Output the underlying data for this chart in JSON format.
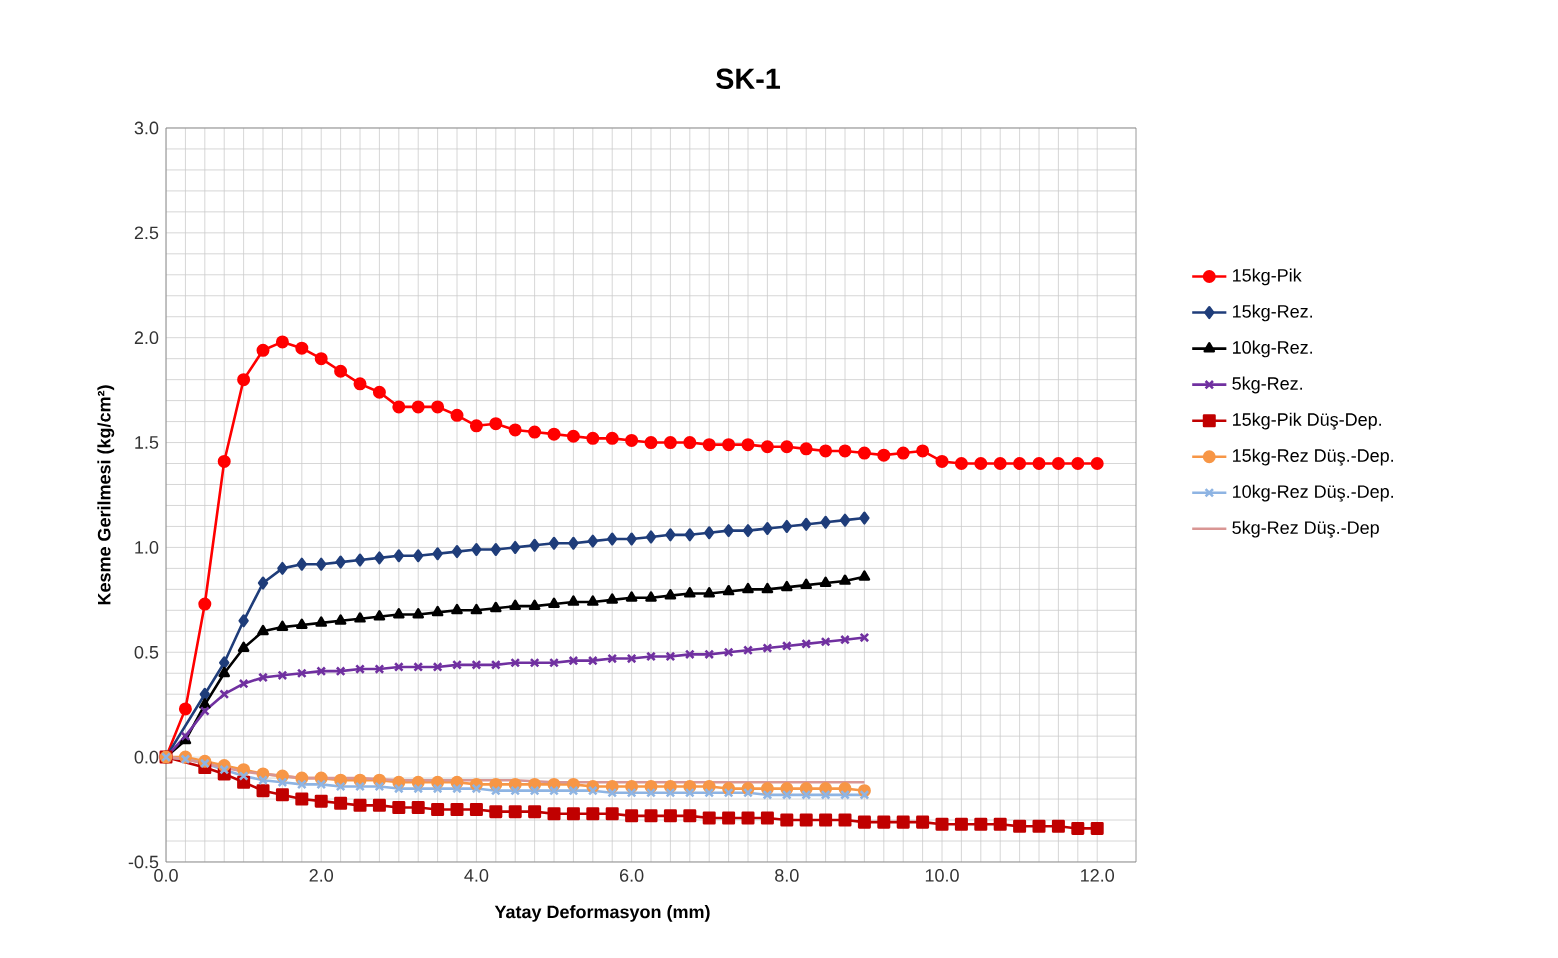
{
  "chart_data": {
    "type": "line",
    "title": "SK-1",
    "xlabel": "Yatay Deformasyon (mm)",
    "ylabel": "Kesme Gerilmesi (kg/cm²)",
    "xlim": [
      0,
      12.5
    ],
    "ylim": [
      -0.5,
      3.0
    ],
    "xticks": [
      {
        "value": 0,
        "label": "0.0"
      },
      {
        "value": 2,
        "label": "2.0"
      },
      {
        "value": 4,
        "label": "4.0"
      },
      {
        "value": 6,
        "label": "6.0"
      },
      {
        "value": 8,
        "label": "8.0"
      },
      {
        "value": 10,
        "label": "10.0"
      },
      {
        "value": 12,
        "label": "12.0"
      }
    ],
    "yticks": [
      {
        "value": -0.5,
        "label": "-0.5"
      },
      {
        "value": 0,
        "label": "0.0"
      },
      {
        "value": 0.5,
        "label": "0.5"
      },
      {
        "value": 1.0,
        "label": "1.0"
      },
      {
        "value": 1.5,
        "label": "1.5"
      },
      {
        "value": 2.0,
        "label": "2.0"
      },
      {
        "value": 2.5,
        "label": "2.5"
      },
      {
        "value": 3.0,
        "label": "3.0"
      }
    ],
    "grid": true,
    "legend": "right",
    "series": [
      {
        "name": "15kg-Pik",
        "color": "#ff0000",
        "marker": "circle",
        "x": [
          0,
          0.25,
          0.5,
          0.75,
          1,
          1.25,
          1.5,
          1.75,
          2,
          2.25,
          2.5,
          2.75,
          3,
          3.25,
          3.5,
          3.75,
          4,
          4.25,
          4.5,
          4.75,
          5,
          5.25,
          5.5,
          5.75,
          6,
          6.25,
          6.5,
          6.75,
          7,
          7.25,
          7.5,
          7.75,
          8,
          8.25,
          8.5,
          8.75,
          9,
          9.25,
          9.5,
          9.75,
          10,
          10.25,
          10.5,
          10.75,
          11,
          11.25,
          11.5,
          11.75,
          12
        ],
        "values": [
          0,
          0.23,
          0.73,
          1.41,
          1.8,
          1.94,
          1.98,
          1.95,
          1.9,
          1.84,
          1.78,
          1.74,
          1.67,
          1.67,
          1.67,
          1.63,
          1.58,
          1.59,
          1.56,
          1.55,
          1.54,
          1.53,
          1.52,
          1.52,
          1.51,
          1.5,
          1.5,
          1.5,
          1.49,
          1.49,
          1.49,
          1.48,
          1.48,
          1.47,
          1.46,
          1.46,
          1.45,
          1.44,
          1.45,
          1.46,
          1.41,
          1.4,
          1.4,
          1.4,
          1.4,
          1.4,
          1.4,
          1.4,
          1.4
        ]
      },
      {
        "name": "15kg-Rez.",
        "color": "#1f3d7a",
        "marker": "diamond",
        "x": [
          0,
          0.25,
          0.5,
          0.75,
          1,
          1.25,
          1.5,
          1.75,
          2,
          2.25,
          2.5,
          2.75,
          3,
          3.25,
          3.5,
          3.75,
          4,
          4.25,
          4.5,
          4.75,
          5,
          5.25,
          5.5,
          5.75,
          6,
          6.25,
          6.5,
          6.75,
          7,
          7.25,
          7.5,
          7.75,
          8,
          8.25,
          8.5,
          8.75,
          9
        ],
        "values": [
          0,
          null,
          0.3,
          0.45,
          0.65,
          0.83,
          0.9,
          0.92,
          0.92,
          0.93,
          0.94,
          0.95,
          0.96,
          0.96,
          0.97,
          0.98,
          0.99,
          0.99,
          1.0,
          1.01,
          1.02,
          1.02,
          1.03,
          1.04,
          1.04,
          1.05,
          1.06,
          1.06,
          1.07,
          1.08,
          1.08,
          1.09,
          1.1,
          1.11,
          1.12,
          1.13,
          1.14
        ]
      },
      {
        "name": "10kg-Rez.",
        "color": "#000000",
        "marker": "triangle",
        "x": [
          0,
          0.25,
          0.5,
          0.75,
          1,
          1.25,
          1.5,
          1.75,
          2,
          2.25,
          2.5,
          2.75,
          3,
          3.25,
          3.5,
          3.75,
          4,
          4.25,
          4.5,
          4.75,
          5,
          5.25,
          5.5,
          5.75,
          6,
          6.25,
          6.5,
          6.75,
          7,
          7.25,
          7.5,
          7.75,
          8,
          8.25,
          8.5,
          8.75,
          9
        ],
        "values": [
          0,
          0.08,
          0.25,
          0.4,
          0.52,
          0.6,
          0.62,
          0.63,
          0.64,
          0.65,
          0.66,
          0.67,
          0.68,
          0.68,
          0.69,
          0.7,
          0.7,
          0.71,
          0.72,
          0.72,
          0.73,
          0.74,
          0.74,
          0.75,
          0.76,
          0.76,
          0.77,
          0.78,
          0.78,
          0.79,
          0.8,
          0.8,
          0.81,
          0.82,
          0.83,
          0.84,
          0.86
        ]
      },
      {
        "name": "5kg-Rez.",
        "color": "#7030a0",
        "marker": "cross",
        "x": [
          0,
          0.25,
          0.5,
          0.75,
          1,
          1.25,
          1.5,
          1.75,
          2,
          2.25,
          2.5,
          2.75,
          3,
          3.25,
          3.5,
          3.75,
          4,
          4.25,
          4.5,
          4.75,
          5,
          5.25,
          5.5,
          5.75,
          6,
          6.25,
          6.5,
          6.75,
          7,
          7.25,
          7.5,
          7.75,
          8,
          8.25,
          8.5,
          8.75,
          9
        ],
        "values": [
          0,
          0.1,
          0.22,
          0.3,
          0.35,
          0.38,
          0.39,
          0.4,
          0.41,
          0.41,
          0.42,
          0.42,
          0.43,
          0.43,
          0.43,
          0.44,
          0.44,
          0.44,
          0.45,
          0.45,
          0.45,
          0.46,
          0.46,
          0.47,
          0.47,
          0.48,
          0.48,
          0.49,
          0.49,
          0.5,
          0.51,
          0.52,
          0.53,
          0.54,
          0.55,
          0.56,
          0.57
        ]
      },
      {
        "name": "15kg-Pik Düş-Dep.",
        "color": "#c00000",
        "marker": "square",
        "x": [
          0,
          0.25,
          0.5,
          0.75,
          1,
          1.25,
          1.5,
          1.75,
          2,
          2.25,
          2.5,
          2.75,
          3,
          3.25,
          3.5,
          3.75,
          4,
          4.25,
          4.5,
          4.75,
          5,
          5.25,
          5.5,
          5.75,
          6,
          6.25,
          6.5,
          6.75,
          7,
          7.25,
          7.5,
          7.75,
          8,
          8.25,
          8.5,
          8.75,
          9,
          9.25,
          9.5,
          9.75,
          10,
          10.25,
          10.5,
          10.75,
          11,
          11.25,
          11.5,
          11.75,
          12
        ],
        "values": [
          0,
          null,
          -0.05,
          -0.08,
          -0.12,
          -0.16,
          -0.18,
          -0.2,
          -0.21,
          -0.22,
          -0.23,
          -0.23,
          -0.24,
          -0.24,
          -0.25,
          -0.25,
          -0.25,
          -0.26,
          -0.26,
          -0.26,
          -0.27,
          -0.27,
          -0.27,
          -0.27,
          -0.28,
          -0.28,
          -0.28,
          -0.28,
          -0.29,
          -0.29,
          -0.29,
          -0.29,
          -0.3,
          -0.3,
          -0.3,
          -0.3,
          -0.31,
          -0.31,
          -0.31,
          -0.31,
          -0.32,
          -0.32,
          -0.32,
          -0.32,
          -0.33,
          -0.33,
          -0.33,
          -0.34,
          -0.34
        ]
      },
      {
        "name": "15kg-Rez Düş.-Dep.",
        "color": "#f79646",
        "marker": "circle",
        "x": [
          0,
          0.25,
          0.5,
          0.75,
          1,
          1.25,
          1.5,
          1.75,
          2,
          2.25,
          2.5,
          2.75,
          3,
          3.25,
          3.5,
          3.75,
          4,
          4.25,
          4.5,
          4.75,
          5,
          5.25,
          5.5,
          5.75,
          6,
          6.25,
          6.5,
          6.75,
          7,
          7.25,
          7.5,
          7.75,
          8,
          8.25,
          8.5,
          8.75,
          9
        ],
        "values": [
          0,
          0,
          -0.02,
          -0.04,
          -0.06,
          -0.08,
          -0.09,
          -0.1,
          -0.1,
          -0.11,
          -0.11,
          -0.11,
          -0.12,
          -0.12,
          -0.12,
          -0.12,
          -0.13,
          -0.13,
          -0.13,
          -0.13,
          -0.13,
          -0.13,
          -0.14,
          -0.14,
          -0.14,
          -0.14,
          -0.14,
          -0.14,
          -0.14,
          -0.15,
          -0.15,
          -0.15,
          -0.15,
          -0.15,
          -0.15,
          -0.15,
          -0.16
        ]
      },
      {
        "name": "10kg-Rez Düş.-Dep.",
        "color": "#8eb4e3",
        "marker": "cross",
        "x": [
          0,
          0.25,
          0.5,
          0.75,
          1,
          1.25,
          1.5,
          1.75,
          2,
          2.25,
          2.5,
          2.75,
          3,
          3.25,
          3.5,
          3.75,
          4,
          4.25,
          4.5,
          4.75,
          5,
          5.25,
          5.5,
          5.75,
          6,
          6.25,
          6.5,
          6.75,
          7,
          7.25,
          7.5,
          7.75,
          8,
          8.25,
          8.5,
          8.75,
          9
        ],
        "values": [
          0,
          -0.01,
          -0.03,
          -0.06,
          -0.09,
          -0.11,
          -0.12,
          -0.13,
          -0.13,
          -0.14,
          -0.14,
          -0.14,
          -0.15,
          -0.15,
          -0.15,
          -0.15,
          -0.15,
          -0.16,
          -0.16,
          -0.16,
          -0.16,
          -0.16,
          -0.16,
          -0.17,
          -0.17,
          -0.17,
          -0.17,
          -0.17,
          -0.17,
          -0.17,
          -0.17,
          -0.18,
          -0.18,
          -0.18,
          -0.18,
          -0.18,
          -0.18
        ]
      },
      {
        "name": "5kg-Rez Düş.-Dep",
        "color": "#d99694",
        "marker": "none",
        "x": [
          0,
          0.25,
          0.5,
          0.75,
          1,
          1.25,
          1.5,
          1.75,
          2,
          2.5,
          3,
          3.5,
          4,
          4.5,
          5,
          5.5,
          6,
          6.5,
          7,
          7.5,
          8,
          8.5,
          9
        ],
        "values": [
          0,
          -0.01,
          -0.03,
          -0.05,
          -0.07,
          -0.08,
          -0.09,
          -0.1,
          -0.1,
          -0.1,
          -0.11,
          -0.11,
          -0.11,
          -0.11,
          -0.12,
          -0.12,
          -0.12,
          -0.12,
          -0.12,
          -0.12,
          -0.12,
          -0.12,
          -0.12
        ]
      }
    ]
  }
}
